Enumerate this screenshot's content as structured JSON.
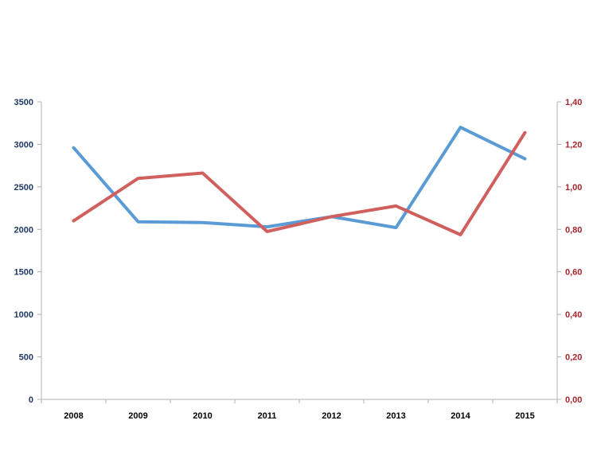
{
  "chart_data": {
    "type": "line",
    "categories": [
      "2008",
      "2009",
      "2010",
      "2011",
      "2012",
      "2013",
      "2014",
      "2015"
    ],
    "series": [
      {
        "axis": "left",
        "color": "#5b9bd5",
        "values": [
          2960,
          2090,
          2080,
          2030,
          2150,
          2020,
          3200,
          2830
        ]
      },
      {
        "axis": "right",
        "color": "#d0605e",
        "values": [
          0.84,
          1.04,
          1.065,
          0.79,
          0.86,
          0.91,
          0.775,
          1.255
        ]
      }
    ],
    "y_left": {
      "ylim": [
        0,
        3500
      ],
      "ticks": [
        0,
        500,
        1000,
        1500,
        2000,
        2500,
        3000,
        3500
      ],
      "tick_labels": [
        "0",
        "500",
        "1000",
        "1500",
        "2000",
        "2500",
        "3000",
        "3500"
      ],
      "color": "#1f3864"
    },
    "y_right": {
      "ylim": [
        0,
        1.4
      ],
      "ticks": [
        0,
        0.2,
        0.4,
        0.6,
        0.8,
        1.0,
        1.2,
        1.4
      ],
      "tick_labels": [
        "0,00",
        "0,20",
        "0,40",
        "0,60",
        "0,80",
        "1,00",
        "1,20",
        "1,40"
      ],
      "color": "#a4262c"
    },
    "grid": false,
    "legend": "none"
  }
}
